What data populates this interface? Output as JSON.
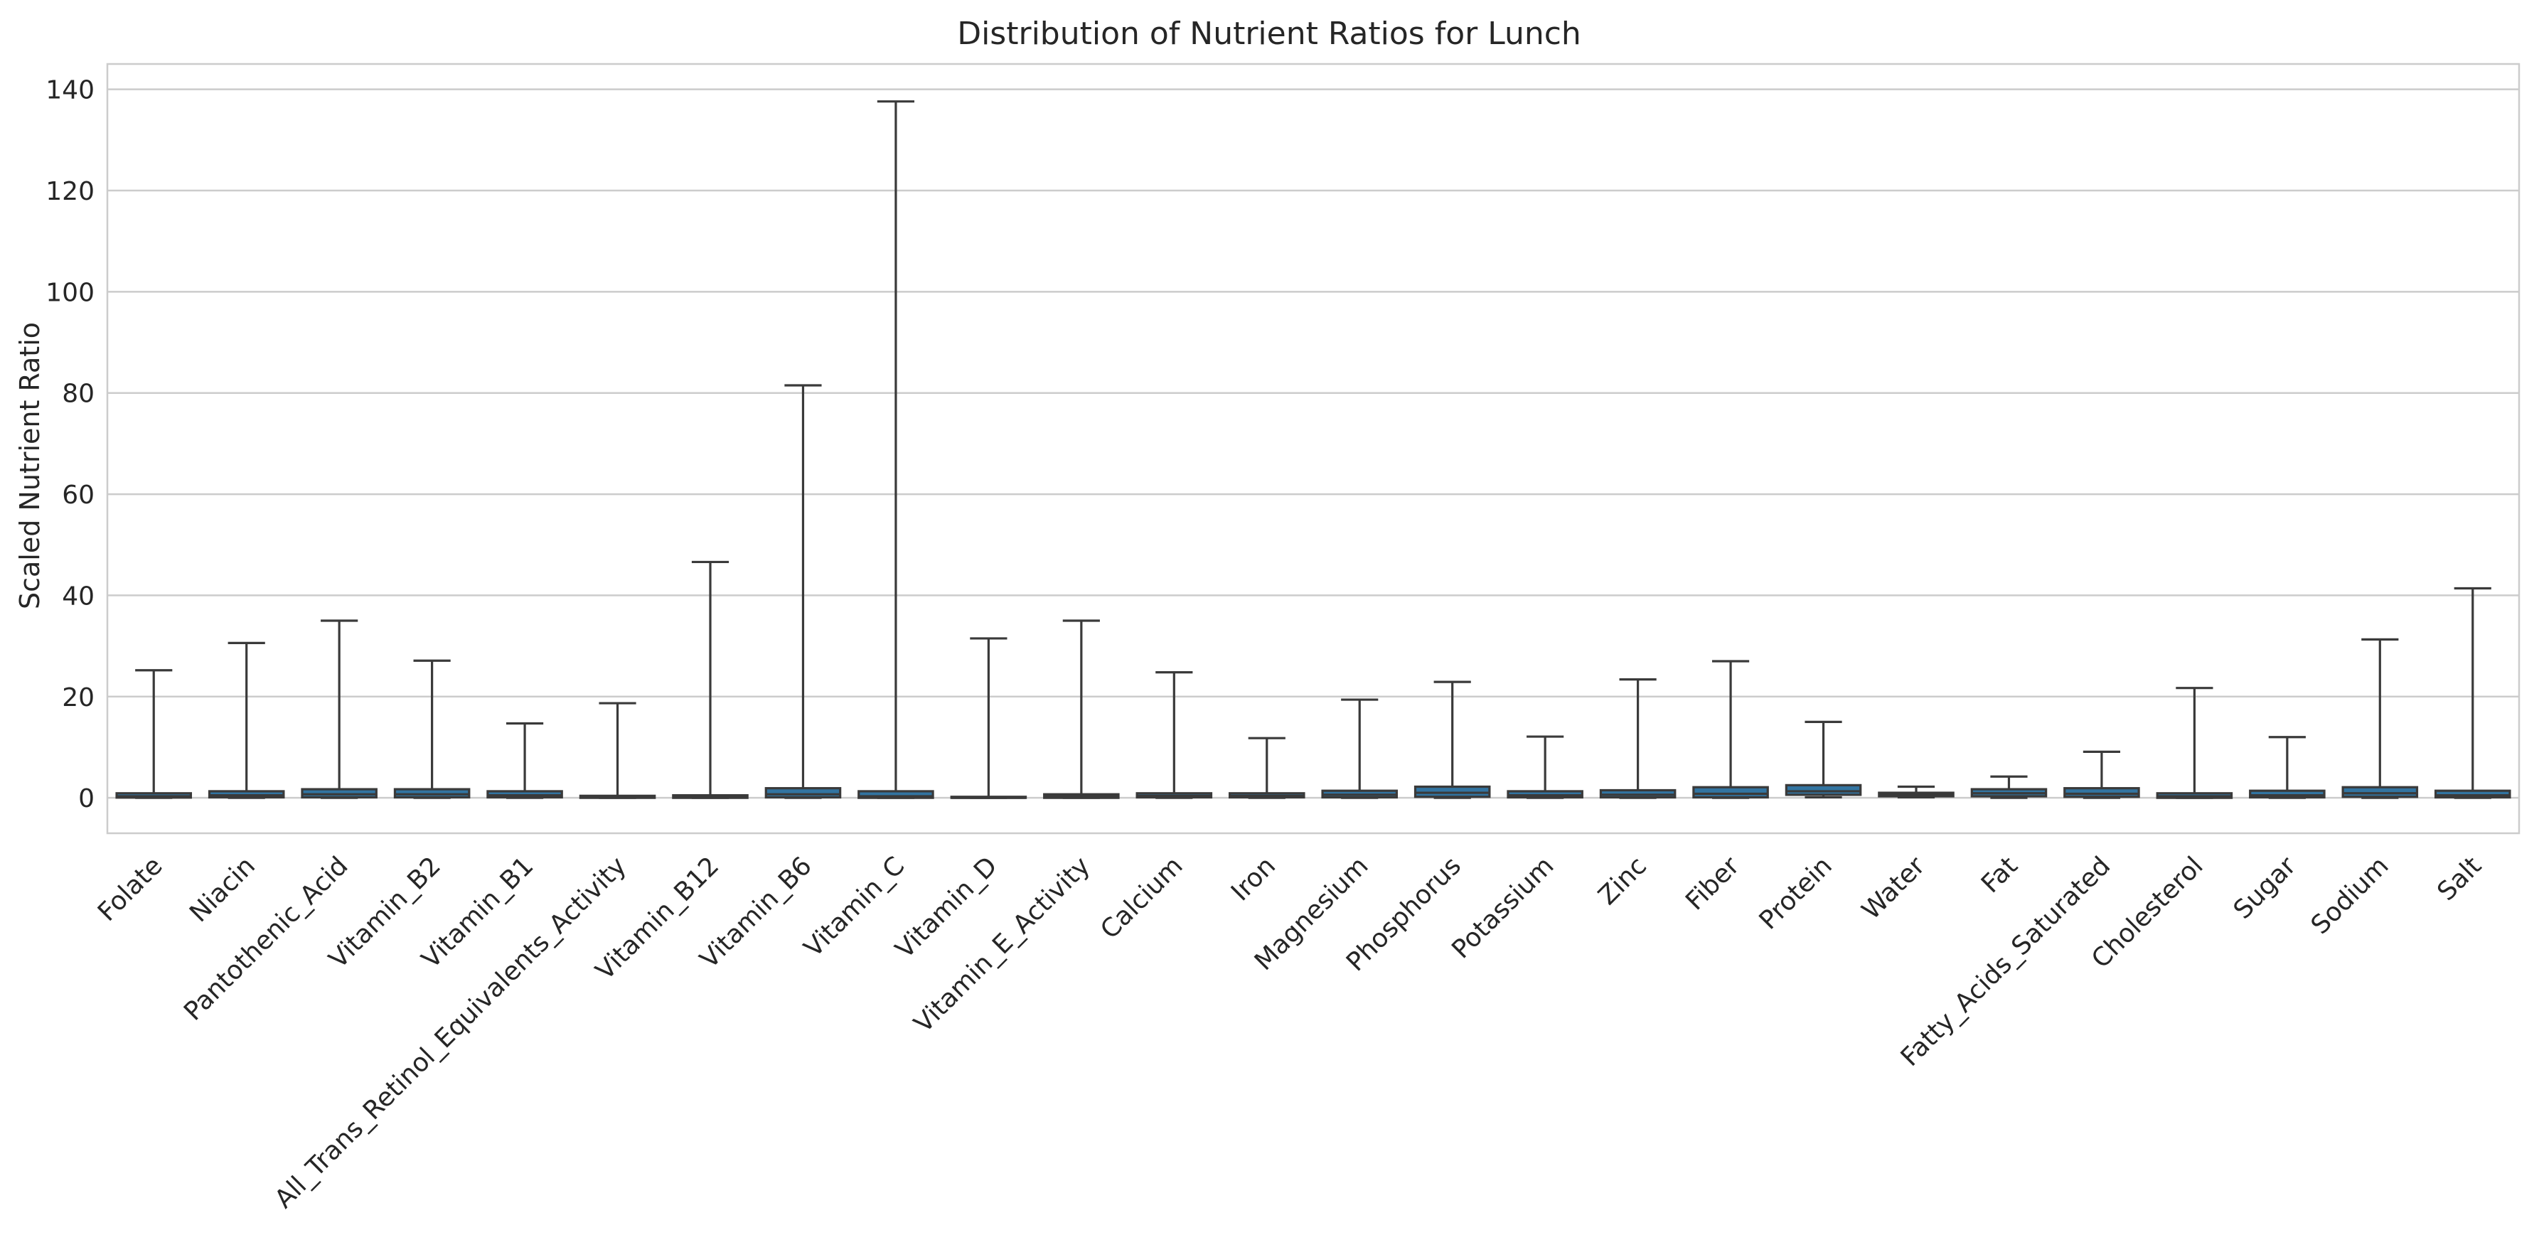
{
  "chart_data": {
    "type": "box",
    "title": "Distribution of Nutrient Ratios for Lunch",
    "xlabel": "",
    "ylabel": "Scaled Nutrient Ratio",
    "ylim": [
      -7,
      145
    ],
    "yticks": [
      0,
      20,
      40,
      60,
      80,
      100,
      120,
      140
    ],
    "grid": true,
    "color": "#3274a1",
    "categories": [
      "Folate",
      "Niacin",
      "Pantothenic_Acid",
      "Vitamin_B2",
      "Vitamin_B1",
      "All_Trans_Retinol_Equivalents_Activity",
      "Vitamin_B12",
      "Vitamin_B6",
      "Vitamin_C",
      "Vitamin_D",
      "Vitamin_E_Activity",
      "Calcium",
      "Iron",
      "Magnesium",
      "Phosphorus",
      "Potassium",
      "Zinc",
      "Fiber",
      "Protein",
      "Water",
      "Fat",
      "Fatty_Acids_Saturated",
      "Cholesterol",
      "Sugar",
      "Sodium",
      "Salt"
    ],
    "boxes": [
      {
        "min": 0,
        "q1": 0.05,
        "median": 0.3,
        "q3": 0.9,
        "max": 25.2
      },
      {
        "min": 0,
        "q1": 0.1,
        "median": 0.5,
        "q3": 1.3,
        "max": 30.6
      },
      {
        "min": 0,
        "q1": 0.1,
        "median": 0.7,
        "q3": 1.7,
        "max": 35.0
      },
      {
        "min": 0,
        "q1": 0.1,
        "median": 0.7,
        "q3": 1.7,
        "max": 27.1
      },
      {
        "min": 0,
        "q1": 0.1,
        "median": 0.5,
        "q3": 1.3,
        "max": 14.7
      },
      {
        "min": 0,
        "q1": 0.0,
        "median": 0.1,
        "q3": 0.4,
        "max": 18.7
      },
      {
        "min": 0,
        "q1": 0.0,
        "median": 0.2,
        "q3": 0.5,
        "max": 46.6
      },
      {
        "min": 0,
        "q1": 0.1,
        "median": 0.7,
        "q3": 1.9,
        "max": 81.5
      },
      {
        "min": 0,
        "q1": 0.0,
        "median": 0.3,
        "q3": 1.3,
        "max": 137.6
      },
      {
        "min": 0,
        "q1": 0.0,
        "median": 0.0,
        "q3": 0.2,
        "max": 31.5
      },
      {
        "min": 0,
        "q1": 0.0,
        "median": 0.3,
        "q3": 0.7,
        "max": 35.0
      },
      {
        "min": 0,
        "q1": 0.1,
        "median": 0.4,
        "q3": 0.9,
        "max": 24.8
      },
      {
        "min": 0,
        "q1": 0.1,
        "median": 0.4,
        "q3": 0.9,
        "max": 11.8
      },
      {
        "min": 0,
        "q1": 0.1,
        "median": 0.6,
        "q3": 1.4,
        "max": 19.4
      },
      {
        "min": 0,
        "q1": 0.2,
        "median": 1.0,
        "q3": 2.2,
        "max": 22.9
      },
      {
        "min": 0,
        "q1": 0.1,
        "median": 0.5,
        "q3": 1.3,
        "max": 12.1
      },
      {
        "min": 0,
        "q1": 0.1,
        "median": 0.6,
        "q3": 1.5,
        "max": 23.4
      },
      {
        "min": 0,
        "q1": 0.1,
        "median": 0.8,
        "q3": 2.1,
        "max": 27.0
      },
      {
        "min": 0.1,
        "q1": 0.6,
        "median": 1.3,
        "q3": 2.5,
        "max": 15.0
      },
      {
        "min": 0.1,
        "q1": 0.3,
        "median": 0.6,
        "q3": 1.0,
        "max": 2.2
      },
      {
        "min": 0,
        "q1": 0.3,
        "median": 0.9,
        "q3": 1.7,
        "max": 4.2
      },
      {
        "min": 0,
        "q1": 0.2,
        "median": 0.8,
        "q3": 1.9,
        "max": 9.1
      },
      {
        "min": 0,
        "q1": 0.0,
        "median": 0.3,
        "q3": 0.9,
        "max": 21.7
      },
      {
        "min": 0,
        "q1": 0.1,
        "median": 0.5,
        "q3": 1.4,
        "max": 12.0
      },
      {
        "min": 0,
        "q1": 0.2,
        "median": 0.9,
        "q3": 2.1,
        "max": 31.3
      },
      {
        "min": 0,
        "q1": 0.1,
        "median": 0.5,
        "q3": 1.4,
        "max": 41.4
      }
    ]
  }
}
